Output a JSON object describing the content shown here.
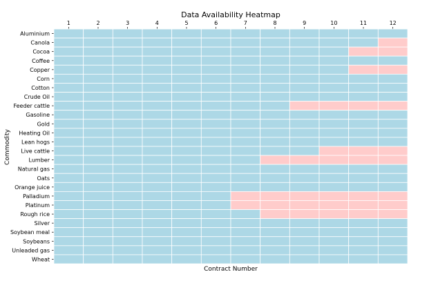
{
  "chart_data": {
    "type": "heatmap",
    "title": "Data Availability Heatmap",
    "xlabel": "Contract Number",
    "ylabel": "Commodity",
    "x_ticks": [
      "1",
      "2",
      "3",
      "4",
      "5",
      "6",
      "7",
      "8",
      "9",
      "10",
      "11",
      "12"
    ],
    "x_axis_position": "top",
    "rows": [
      {
        "label": "Aluminium",
        "values": [
          1,
          1,
          1,
          1,
          1,
          1,
          1,
          1,
          1,
          1,
          1,
          1
        ]
      },
      {
        "label": "Canola",
        "values": [
          1,
          1,
          1,
          1,
          1,
          1,
          1,
          1,
          1,
          1,
          1,
          0
        ]
      },
      {
        "label": "Cocoa",
        "values": [
          1,
          1,
          1,
          1,
          1,
          1,
          1,
          1,
          1,
          1,
          0,
          0
        ]
      },
      {
        "label": "Coffee",
        "values": [
          1,
          1,
          1,
          1,
          1,
          1,
          1,
          1,
          1,
          1,
          1,
          1
        ]
      },
      {
        "label": "Copper",
        "values": [
          1,
          1,
          1,
          1,
          1,
          1,
          1,
          1,
          1,
          1,
          0,
          0
        ]
      },
      {
        "label": "Corn",
        "values": [
          1,
          1,
          1,
          1,
          1,
          1,
          1,
          1,
          1,
          1,
          1,
          1
        ]
      },
      {
        "label": "Cotton",
        "values": [
          1,
          1,
          1,
          1,
          1,
          1,
          1,
          1,
          1,
          1,
          1,
          1
        ]
      },
      {
        "label": "Crude Oil",
        "values": [
          1,
          1,
          1,
          1,
          1,
          1,
          1,
          1,
          1,
          1,
          1,
          1
        ]
      },
      {
        "label": "Feeder cattle",
        "values": [
          1,
          1,
          1,
          1,
          1,
          1,
          1,
          1,
          0,
          0,
          0,
          0
        ]
      },
      {
        "label": "Gasoline",
        "values": [
          1,
          1,
          1,
          1,
          1,
          1,
          1,
          1,
          1,
          1,
          1,
          1
        ]
      },
      {
        "label": "Gold",
        "values": [
          1,
          1,
          1,
          1,
          1,
          1,
          1,
          1,
          1,
          1,
          1,
          1
        ]
      },
      {
        "label": "Heating Oil",
        "values": [
          1,
          1,
          1,
          1,
          1,
          1,
          1,
          1,
          1,
          1,
          1,
          1
        ]
      },
      {
        "label": "Lean hogs",
        "values": [
          1,
          1,
          1,
          1,
          1,
          1,
          1,
          1,
          1,
          1,
          1,
          1
        ]
      },
      {
        "label": "Live cattle",
        "values": [
          1,
          1,
          1,
          1,
          1,
          1,
          1,
          1,
          1,
          0,
          0,
          0
        ]
      },
      {
        "label": "Lumber",
        "values": [
          1,
          1,
          1,
          1,
          1,
          1,
          1,
          0,
          0,
          0,
          0,
          0
        ]
      },
      {
        "label": "Natural gas",
        "values": [
          1,
          1,
          1,
          1,
          1,
          1,
          1,
          1,
          1,
          1,
          1,
          1
        ]
      },
      {
        "label": "Oats",
        "values": [
          1,
          1,
          1,
          1,
          1,
          1,
          1,
          1,
          1,
          1,
          1,
          1
        ]
      },
      {
        "label": "Orange juice",
        "values": [
          1,
          1,
          1,
          1,
          1,
          1,
          1,
          1,
          1,
          1,
          1,
          1
        ]
      },
      {
        "label": "Palladium",
        "values": [
          1,
          1,
          1,
          1,
          1,
          1,
          0,
          0,
          0,
          0,
          0,
          0
        ]
      },
      {
        "label": "Platinum",
        "values": [
          1,
          1,
          1,
          1,
          1,
          1,
          0,
          0,
          0,
          0,
          0,
          0
        ]
      },
      {
        "label": "Rough rice",
        "values": [
          1,
          1,
          1,
          1,
          1,
          1,
          1,
          0,
          0,
          0,
          0,
          0
        ]
      },
      {
        "label": "Silver",
        "values": [
          1,
          1,
          1,
          1,
          1,
          1,
          1,
          1,
          1,
          1,
          1,
          1
        ]
      },
      {
        "label": "Soybean meal",
        "values": [
          1,
          1,
          1,
          1,
          1,
          1,
          1,
          1,
          1,
          1,
          1,
          1
        ]
      },
      {
        "label": "Soybeans",
        "values": [
          1,
          1,
          1,
          1,
          1,
          1,
          1,
          1,
          1,
          1,
          1,
          1
        ]
      },
      {
        "label": "Unleaded gas",
        "values": [
          1,
          1,
          1,
          1,
          1,
          1,
          1,
          1,
          1,
          1,
          1,
          1
        ]
      },
      {
        "label": "Wheat",
        "values": [
          1,
          1,
          1,
          1,
          1,
          1,
          1,
          1,
          1,
          1,
          1,
          1
        ]
      }
    ],
    "colors": {
      "available": "#add8e6",
      "missing": "#ffcccb",
      "gridline": "#ffffff"
    },
    "legend": "none"
  }
}
